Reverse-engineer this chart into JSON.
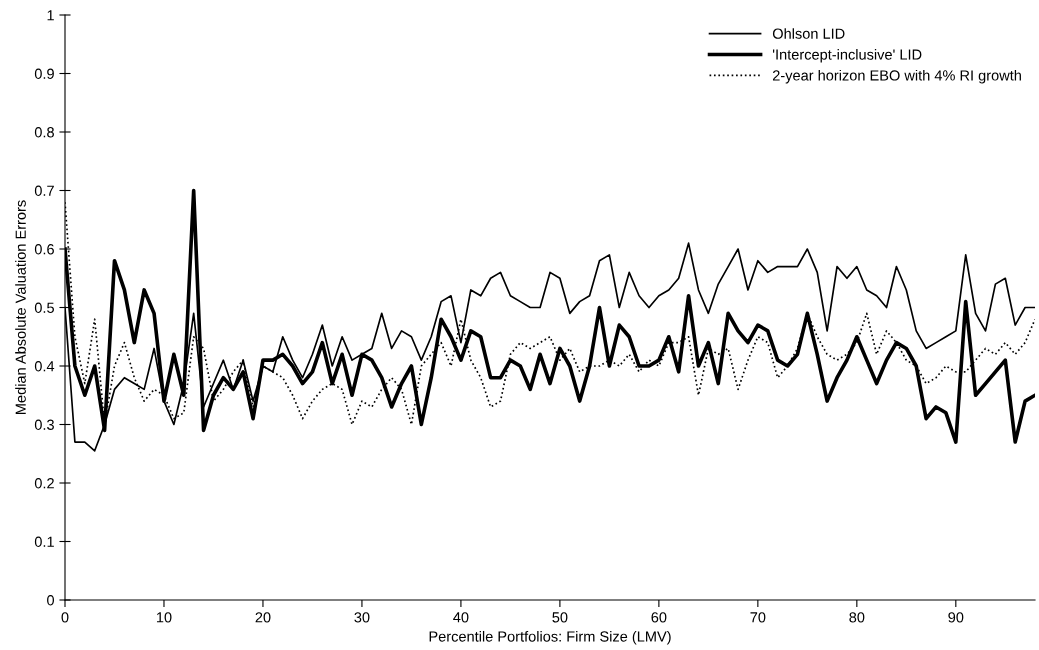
{
  "chart_data": {
    "type": "line",
    "xlabel": "Percentile Portfolios: Firm Size (LMV)",
    "ylabel": "Median Absolute Valuation Errors",
    "x": [
      0,
      1,
      2,
      3,
      4,
      5,
      6,
      7,
      8,
      9,
      10,
      11,
      12,
      13,
      14,
      15,
      16,
      17,
      18,
      19,
      20,
      21,
      22,
      23,
      24,
      25,
      26,
      27,
      28,
      29,
      30,
      31,
      32,
      33,
      34,
      35,
      36,
      37,
      38,
      39,
      40,
      41,
      42,
      43,
      44,
      45,
      46,
      47,
      48,
      49,
      50,
      51,
      52,
      53,
      54,
      55,
      56,
      57,
      58,
      59,
      60,
      61,
      62,
      63,
      64,
      65,
      66,
      67,
      68,
      69,
      70,
      71,
      72,
      73,
      74,
      75,
      76,
      77,
      78,
      79,
      80,
      81,
      82,
      83,
      84,
      85,
      86,
      87,
      88,
      89,
      90,
      91,
      92,
      93,
      94,
      95,
      96,
      97,
      98
    ],
    "series": [
      {
        "name": "Ohlson LID",
        "color": "#000000",
        "line_style": "solid",
        "values": [
          0.5,
          0.27,
          0.27,
          0.255,
          0.3,
          0.36,
          0.38,
          0.37,
          0.36,
          0.43,
          0.34,
          0.3,
          0.37,
          0.49,
          0.33,
          0.37,
          0.41,
          0.36,
          0.41,
          0.34,
          0.4,
          0.39,
          0.45,
          0.41,
          0.38,
          0.42,
          0.47,
          0.4,
          0.45,
          0.41,
          0.42,
          0.43,
          0.49,
          0.43,
          0.46,
          0.45,
          0.41,
          0.45,
          0.51,
          0.52,
          0.44,
          0.53,
          0.52,
          0.55,
          0.56,
          0.52,
          0.51,
          0.5,
          0.5,
          0.56,
          0.55,
          0.49,
          0.51,
          0.52,
          0.58,
          0.59,
          0.5,
          0.56,
          0.52,
          0.5,
          0.52,
          0.53,
          0.55,
          0.61,
          0.53,
          0.49,
          0.54,
          0.57,
          0.6,
          0.53,
          0.58,
          0.56,
          0.57,
          0.57,
          0.57,
          0.6,
          0.56,
          0.46,
          0.57,
          0.55,
          0.57,
          0.53,
          0.52,
          0.5,
          0.57,
          0.53,
          0.46,
          0.43,
          0.44,
          0.45,
          0.46,
          0.59,
          0.49,
          0.46,
          0.54,
          0.55,
          0.47,
          0.5,
          0.5
        ]
      },
      {
        "name": "'Intercept-inclusive' LID",
        "color": "#000000",
        "line_style": "solid",
        "values": [
          0.6,
          0.4,
          0.35,
          0.4,
          0.29,
          0.58,
          0.53,
          0.44,
          0.53,
          0.49,
          0.34,
          0.42,
          0.35,
          0.7,
          0.29,
          0.35,
          0.38,
          0.36,
          0.39,
          0.31,
          0.41,
          0.41,
          0.42,
          0.4,
          0.37,
          0.39,
          0.44,
          0.37,
          0.42,
          0.35,
          0.42,
          0.41,
          0.38,
          0.33,
          0.37,
          0.4,
          0.3,
          0.38,
          0.48,
          0.45,
          0.41,
          0.46,
          0.45,
          0.38,
          0.38,
          0.41,
          0.4,
          0.36,
          0.42,
          0.37,
          0.43,
          0.4,
          0.34,
          0.4,
          0.5,
          0.4,
          0.47,
          0.45,
          0.4,
          0.4,
          0.41,
          0.45,
          0.39,
          0.52,
          0.4,
          0.44,
          0.37,
          0.49,
          0.46,
          0.44,
          0.47,
          0.46,
          0.41,
          0.4,
          0.42,
          0.49,
          0.42,
          0.34,
          0.38,
          0.41,
          0.45,
          0.41,
          0.37,
          0.41,
          0.44,
          0.43,
          0.4,
          0.31,
          0.33,
          0.32,
          0.27,
          0.51,
          0.35,
          0.37,
          0.39,
          0.41,
          0.27,
          0.34,
          0.35
        ]
      },
      {
        "name": "2-year horizon EBO with 4% RI growth",
        "color": "#000000",
        "line_style": "dotted",
        "values": [
          0.68,
          0.45,
          0.37,
          0.48,
          0.3,
          0.4,
          0.44,
          0.38,
          0.34,
          0.36,
          0.35,
          0.31,
          0.32,
          0.45,
          0.43,
          0.34,
          0.36,
          0.39,
          0.41,
          0.33,
          0.4,
          0.39,
          0.38,
          0.35,
          0.31,
          0.34,
          0.36,
          0.37,
          0.36,
          0.3,
          0.34,
          0.33,
          0.36,
          0.38,
          0.36,
          0.3,
          0.4,
          0.42,
          0.44,
          0.4,
          0.48,
          0.41,
          0.38,
          0.33,
          0.34,
          0.42,
          0.44,
          0.43,
          0.44,
          0.45,
          0.41,
          0.43,
          0.39,
          0.4,
          0.4,
          0.41,
          0.4,
          0.42,
          0.39,
          0.41,
          0.4,
          0.44,
          0.44,
          0.45,
          0.35,
          0.43,
          0.42,
          0.43,
          0.36,
          0.41,
          0.45,
          0.44,
          0.38,
          0.4,
          0.43,
          0.49,
          0.45,
          0.42,
          0.41,
          0.42,
          0.44,
          0.49,
          0.42,
          0.46,
          0.44,
          0.41,
          0.4,
          0.37,
          0.38,
          0.4,
          0.39,
          0.39,
          0.41,
          0.43,
          0.42,
          0.44,
          0.42,
          0.44,
          0.48
        ]
      }
    ],
    "xlim": [
      0,
      98
    ],
    "xticks": [
      0,
      10,
      20,
      30,
      40,
      50,
      60,
      70,
      80,
      90
    ],
    "ylim": [
      0,
      1
    ],
    "yticks": [
      0,
      0.1,
      0.2,
      0.3,
      0.4,
      0.5,
      0.6,
      0.7,
      0.8,
      0.9,
      1
    ],
    "grid": false,
    "legend": "top right",
    "marker": "none"
  }
}
